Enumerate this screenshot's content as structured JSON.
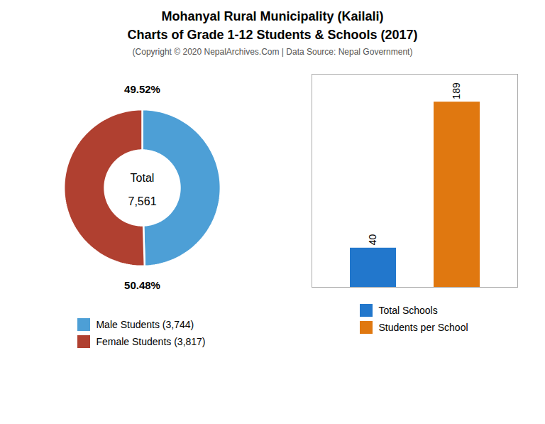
{
  "chart_data": [
    {
      "type": "donut",
      "title": "Mohanyal Rural Municipality (Kailali)\nCharts of Grade 1-12 Students & Schools (2017)",
      "subtitle": "(Copyright © 2020 NepalArchives.Com | Data Source: Nepal Government)",
      "categories": [
        "Male Students (3,744)",
        "Female Students (3,817)"
      ],
      "values": [
        49.52,
        50.48
      ],
      "value_labels": [
        "49.52%",
        "50.48%"
      ],
      "colors": [
        "#4d9fd6",
        "#b04030"
      ],
      "annotations": [
        "Total",
        "7,561"
      ],
      "data_labels": true,
      "legend": "bottom"
    },
    {
      "type": "bar",
      "categories": [
        "Total Schools",
        "Students per School"
      ],
      "values": [
        40,
        189
      ],
      "colors": [
        "#2277cc",
        "#e07810"
      ],
      "ylim": [
        0,
        217.35
      ],
      "tick_labels": false,
      "data_labels": true,
      "legend": "bottom"
    }
  ]
}
